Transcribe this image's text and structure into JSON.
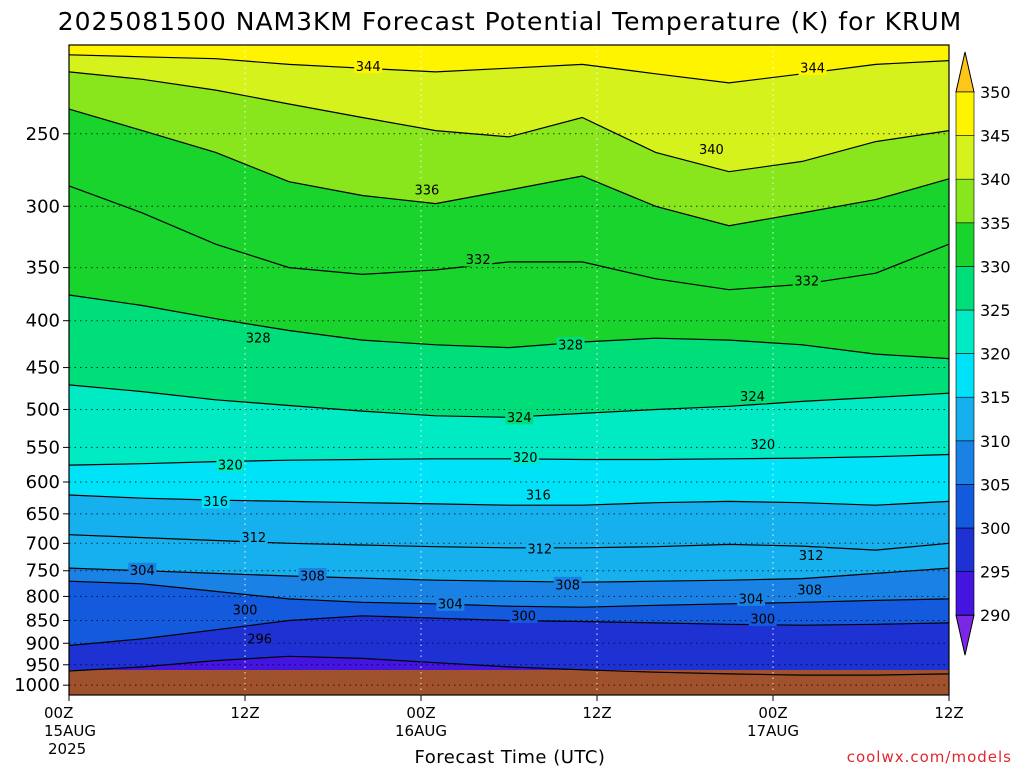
{
  "chart_data": {
    "type": "heatmap",
    "title": "2025081500 NAM3KM Forecast Potential Temperature (K) for KRUM",
    "xlabel": "Forecast Time (UTC)",
    "ylabel": "",
    "credit": "coolwx.com/models",
    "y_ticks": [
      "250",
      "300",
      "350",
      "400",
      "450",
      "500",
      "550",
      "600",
      "650",
      "700",
      "750",
      "800",
      "850",
      "900",
      "950",
      "1000"
    ],
    "y_range": [
      1025,
      200
    ],
    "x_ticks": [
      {
        "hour": 0,
        "line1": "00Z",
        "line2": "15AUG",
        "line3": "2025"
      },
      {
        "hour": 12,
        "line1": "12Z",
        "line2": "",
        "line3": ""
      },
      {
        "hour": 24,
        "line1": "00Z",
        "line2": "16AUG",
        "line3": ""
      },
      {
        "hour": 36,
        "line1": "12Z",
        "line2": "",
        "line3": ""
      },
      {
        "hour": 48,
        "line1": "00Z",
        "line2": "17AUG",
        "line3": ""
      },
      {
        "hour": 60,
        "line1": "12Z",
        "line2": "",
        "line3": ""
      }
    ],
    "x_range_hours": [
      0,
      60
    ],
    "colorbar": {
      "levels": [
        "290",
        "295",
        "300",
        "305",
        "310",
        "315",
        "320",
        "325",
        "330",
        "335",
        "340",
        "345",
        "350"
      ],
      "colors": [
        "#7a28e6",
        "#4414e0",
        "#1e32d4",
        "#145adc",
        "#1a82e4",
        "#16b0ee",
        "#00e2f8",
        "#00eac4",
        "#00de7a",
        "#18d42c",
        "#8ae61c",
        "#d6f21c",
        "#fff400",
        "#ffc61a"
      ]
    },
    "grid": true,
    "surface_color": "#a0522d",
    "isentropes": [
      {
        "theta": 296,
        "p": [
          965,
          955,
          940,
          930,
          935,
          945,
          955,
          962,
          968,
          972,
          975,
          975,
          972
        ]
      },
      {
        "theta": 300,
        "p": [
          905,
          890,
          870,
          850,
          840,
          845,
          850,
          852,
          855,
          858,
          860,
          858,
          855
        ]
      },
      {
        "theta": 304,
        "p": [
          770,
          775,
          790,
          805,
          812,
          815,
          820,
          822,
          818,
          815,
          812,
          808,
          805
        ]
      },
      {
        "theta": 308,
        "p": [
          745,
          750,
          755,
          760,
          764,
          768,
          770,
          772,
          770,
          768,
          765,
          755,
          745
        ]
      },
      {
        "theta": 312,
        "p": [
          685,
          690,
          695,
          700,
          703,
          706,
          708,
          708,
          706,
          702,
          705,
          712,
          700
        ]
      },
      {
        "theta": 316,
        "p": [
          620,
          625,
          628,
          630,
          632,
          634,
          636,
          636,
          632,
          630,
          632,
          636,
          630
        ]
      },
      {
        "theta": 320,
        "p": [
          575,
          573,
          570,
          568,
          567,
          566,
          566,
          567,
          567,
          566,
          565,
          563,
          560
        ]
      },
      {
        "theta": 324,
        "p": [
          470,
          478,
          488,
          495,
          502,
          508,
          510,
          505,
          500,
          496,
          490,
          485,
          480
        ]
      },
      {
        "theta": 328,
        "p": [
          375,
          385,
          398,
          410,
          420,
          425,
          428,
          422,
          418,
          420,
          425,
          435,
          440
        ]
      },
      {
        "theta": 332,
        "p": [
          285,
          305,
          330,
          350,
          356,
          352,
          345,
          345,
          360,
          370,
          365,
          355,
          330
        ]
      },
      {
        "theta": 336,
        "p": [
          235,
          248,
          262,
          282,
          292,
          298,
          288,
          278,
          300,
          315,
          305,
          295,
          280
        ]
      },
      {
        "theta": 340,
        "p": [
          214,
          218,
          224,
          232,
          240,
          248,
          252,
          240,
          262,
          275,
          268,
          255,
          248
        ]
      },
      {
        "theta": 344,
        "p": [
          205,
          206,
          207,
          210,
          212,
          214,
          212,
          210,
          215,
          220,
          215,
          210,
          208
        ]
      }
    ],
    "contour_labels": [
      {
        "value": "344",
        "hour": 20.4,
        "p": 211
      },
      {
        "value": "344",
        "hour": 50.7,
        "p": 212
      },
      {
        "value": "340",
        "hour": 43.8,
        "p": 260
      },
      {
        "value": "336",
        "hour": 24.4,
        "p": 288
      },
      {
        "value": "332",
        "hour": 27.9,
        "p": 343
      },
      {
        "value": "332",
        "hour": 50.3,
        "p": 362
      },
      {
        "value": "328",
        "hour": 12.9,
        "p": 418
      },
      {
        "value": "328",
        "hour": 34.2,
        "p": 425
      },
      {
        "value": "324",
        "hour": 46.6,
        "p": 484
      },
      {
        "value": "324",
        "hour": 30.7,
        "p": 510
      },
      {
        "value": "320",
        "hour": 47.3,
        "p": 546
      },
      {
        "value": "320",
        "hour": 31.1,
        "p": 564
      },
      {
        "value": "320",
        "hour": 11.0,
        "p": 575
      },
      {
        "value": "316",
        "hour": 10.0,
        "p": 630
      },
      {
        "value": "316",
        "hour": 32.0,
        "p": 620
      },
      {
        "value": "312",
        "hour": 12.6,
        "p": 690
      },
      {
        "value": "312",
        "hour": 32.1,
        "p": 710
      },
      {
        "value": "312",
        "hour": 50.6,
        "p": 722
      },
      {
        "value": "308",
        "hour": 16.6,
        "p": 760
      },
      {
        "value": "308",
        "hour": 34.0,
        "p": 777
      },
      {
        "value": "308",
        "hour": 50.5,
        "p": 787
      },
      {
        "value": "304",
        "hour": 5.0,
        "p": 750
      },
      {
        "value": "304",
        "hour": 26.0,
        "p": 815
      },
      {
        "value": "304",
        "hour": 46.5,
        "p": 805
      },
      {
        "value": "300",
        "hour": 12.0,
        "p": 828
      },
      {
        "value": "300",
        "hour": 31.0,
        "p": 840
      },
      {
        "value": "300",
        "hour": 47.3,
        "p": 847
      },
      {
        "value": "296",
        "hour": 13.0,
        "p": 890
      }
    ]
  }
}
